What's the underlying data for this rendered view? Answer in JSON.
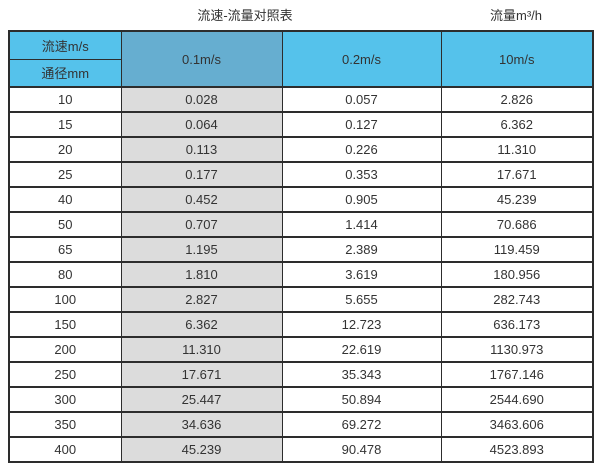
{
  "page": {
    "title_caption": "流速-流量对照表",
    "unit_caption": "流量m³/h"
  },
  "table": {
    "corner_top_label": "流速m/s",
    "corner_bottom_label": "通径mm",
    "velocity_columns": [
      "0.1m/s",
      "0.2m/s",
      "10m/s"
    ]
  },
  "chart_data": {
    "type": "table",
    "title": "流速-流量对照表",
    "value_unit": "流量m³/h",
    "columns": [
      "通径mm",
      "0.1m/s",
      "0.2m/s",
      "10m/s"
    ],
    "rows": [
      [
        "10",
        "0.028",
        "0.057",
        "2.826"
      ],
      [
        "15",
        "0.064",
        "0.127",
        "6.362"
      ],
      [
        "20",
        "0.113",
        "0.226",
        "11.310"
      ],
      [
        "25",
        "0.177",
        "0.353",
        "17.671"
      ],
      [
        "40",
        "0.452",
        "0.905",
        "45.239"
      ],
      [
        "50",
        "0.707",
        "1.414",
        "70.686"
      ],
      [
        "65",
        "1.195",
        "2.389",
        "119.459"
      ],
      [
        "80",
        "1.810",
        "3.619",
        "180.956"
      ],
      [
        "100",
        "2.827",
        "5.655",
        "282.743"
      ],
      [
        "150",
        "6.362",
        "12.723",
        "636.173"
      ],
      [
        "200",
        "11.310",
        "22.619",
        "1130.973"
      ],
      [
        "250",
        "17.671",
        "35.343",
        "1767.146"
      ],
      [
        "300",
        "25.447",
        "50.894",
        "2544.690"
      ],
      [
        "350",
        "34.636",
        "69.272",
        "3463.606"
      ],
      [
        "400",
        "45.239",
        "90.478",
        "4523.893"
      ]
    ]
  },
  "colors": {
    "header_blue": "#55c2eb",
    "highlight_column_blue": "#66aed0",
    "highlight_column_gray": "#dcdcdc",
    "border": "#2d2d2d",
    "text": "#333333"
  }
}
